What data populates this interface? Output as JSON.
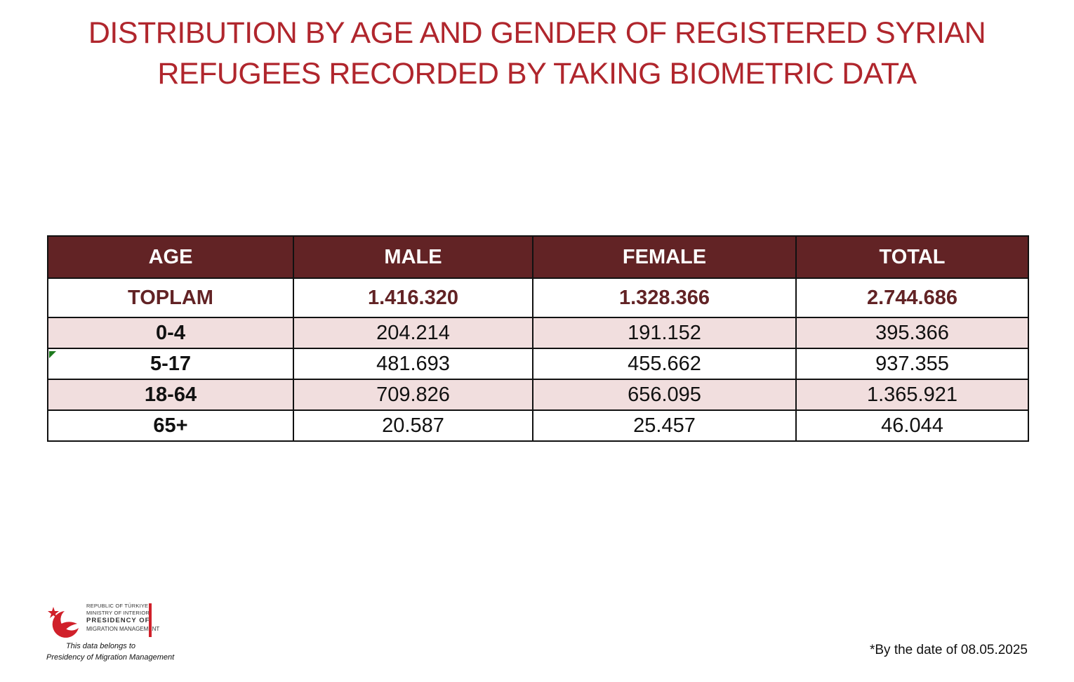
{
  "title": {
    "line1": "DISTRIBUTION BY AGE AND GENDER OF REGISTERED SYRIAN",
    "line2": "REFUGEES RECORDED BY TAKING BIOMETRIC DATA"
  },
  "table": {
    "headers": [
      "AGE",
      "MALE",
      "FEMALE",
      "TOTAL"
    ],
    "total_row": [
      "TOPLAM",
      "1.416.320",
      "1.328.366",
      "2.744.686"
    ],
    "rows": [
      [
        "0-4",
        "204.214",
        "191.152",
        "395.366"
      ],
      [
        "5-17",
        "481.693",
        "455.662",
        "937.355"
      ],
      [
        "18-64",
        "709.826",
        "656.095",
        "1.365.921"
      ],
      [
        "65+",
        "20.587",
        "25.457",
        "46.044"
      ]
    ]
  },
  "logo": {
    "line1": "REPUBLIC OF TÜRKIYE",
    "line2": "MINISTRY OF INTERIOR",
    "line3": "PRESIDENCY OF",
    "line4": "MIGRATION MANAGEMENT",
    "belongs_line1": "This data belongs to",
    "belongs_line2": "Presidency of Migration Management"
  },
  "footnote": "*By the date of 08.05.2025",
  "colors": {
    "title": "#b0262d",
    "header_bg": "#622325",
    "shaded_row": "#f1dede",
    "logo_red": "#d0202a"
  }
}
